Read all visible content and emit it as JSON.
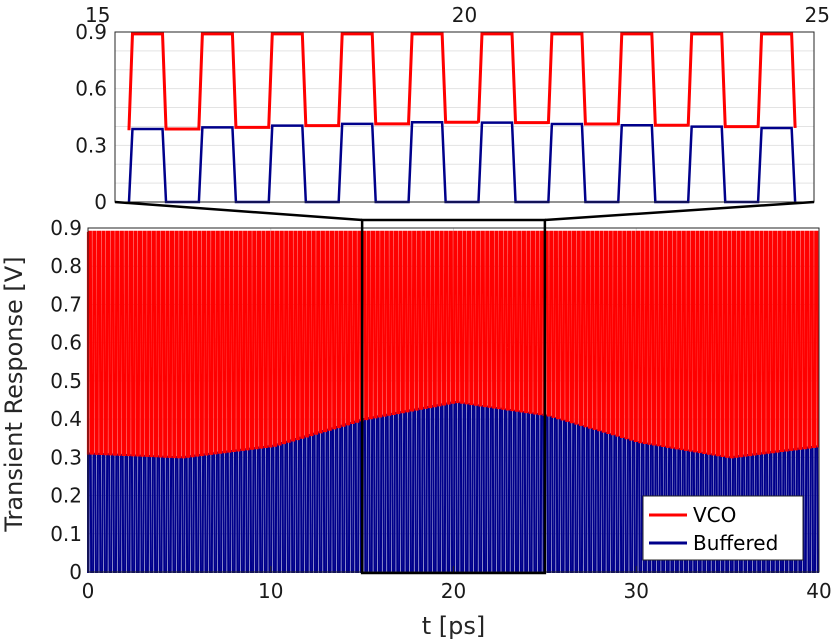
{
  "chart_data": [
    {
      "type": "line",
      "panel": "main",
      "xlabel": "t [ps]",
      "ylabel": "Transient Response [V]",
      "xlim": [
        0,
        40
      ],
      "ylim": [
        0,
        0.9
      ],
      "xticks": [
        "0",
        "10",
        "20",
        "30",
        "40"
      ],
      "yticks": [
        "0",
        "0.1",
        "0.2",
        "0.3",
        "0.4",
        "0.5",
        "0.6",
        "0.7",
        "0.8",
        "0.9"
      ],
      "grid": true,
      "legend_position": "bottom-right",
      "series": [
        {
          "name": "VCO",
          "color": "#ff0000",
          "high_level": 0.89,
          "low_envelope": {
            "x": [
              0,
              5,
              10,
              15,
              20,
              25,
              30,
              35,
              40
            ],
            "y": [
              0.31,
              0.3,
              0.33,
              0.4,
              0.445,
              0.41,
              0.34,
              0.3,
              0.33
            ]
          }
        },
        {
          "name": "Buffered",
          "color": "#00008b",
          "low_level": 0,
          "high_envelope": {
            "x": [
              0,
              5,
              10,
              15,
              20,
              25,
              30,
              35,
              40
            ],
            "y": [
              0.31,
              0.3,
              0.33,
              0.4,
              0.445,
              0.41,
              0.34,
              0.3,
              0.33
            ]
          }
        }
      ],
      "zoom_box": {
        "x": [
          15,
          25
        ],
        "y": [
          0,
          0.9
        ]
      }
    },
    {
      "type": "line",
      "panel": "inset-zoom",
      "xlim": [
        15,
        25
      ],
      "ylim": [
        0,
        0.9
      ],
      "xticks": [
        "15",
        "20",
        "25"
      ],
      "yticks": [
        "0",
        "0.3",
        "0.6",
        "0.9"
      ],
      "series": [
        {
          "name": "VCO",
          "color": "#ff0000",
          "high_level": 0.89
        },
        {
          "name": "Buffered",
          "color": "#00008b",
          "low_level": 0
        }
      ]
    }
  ]
}
